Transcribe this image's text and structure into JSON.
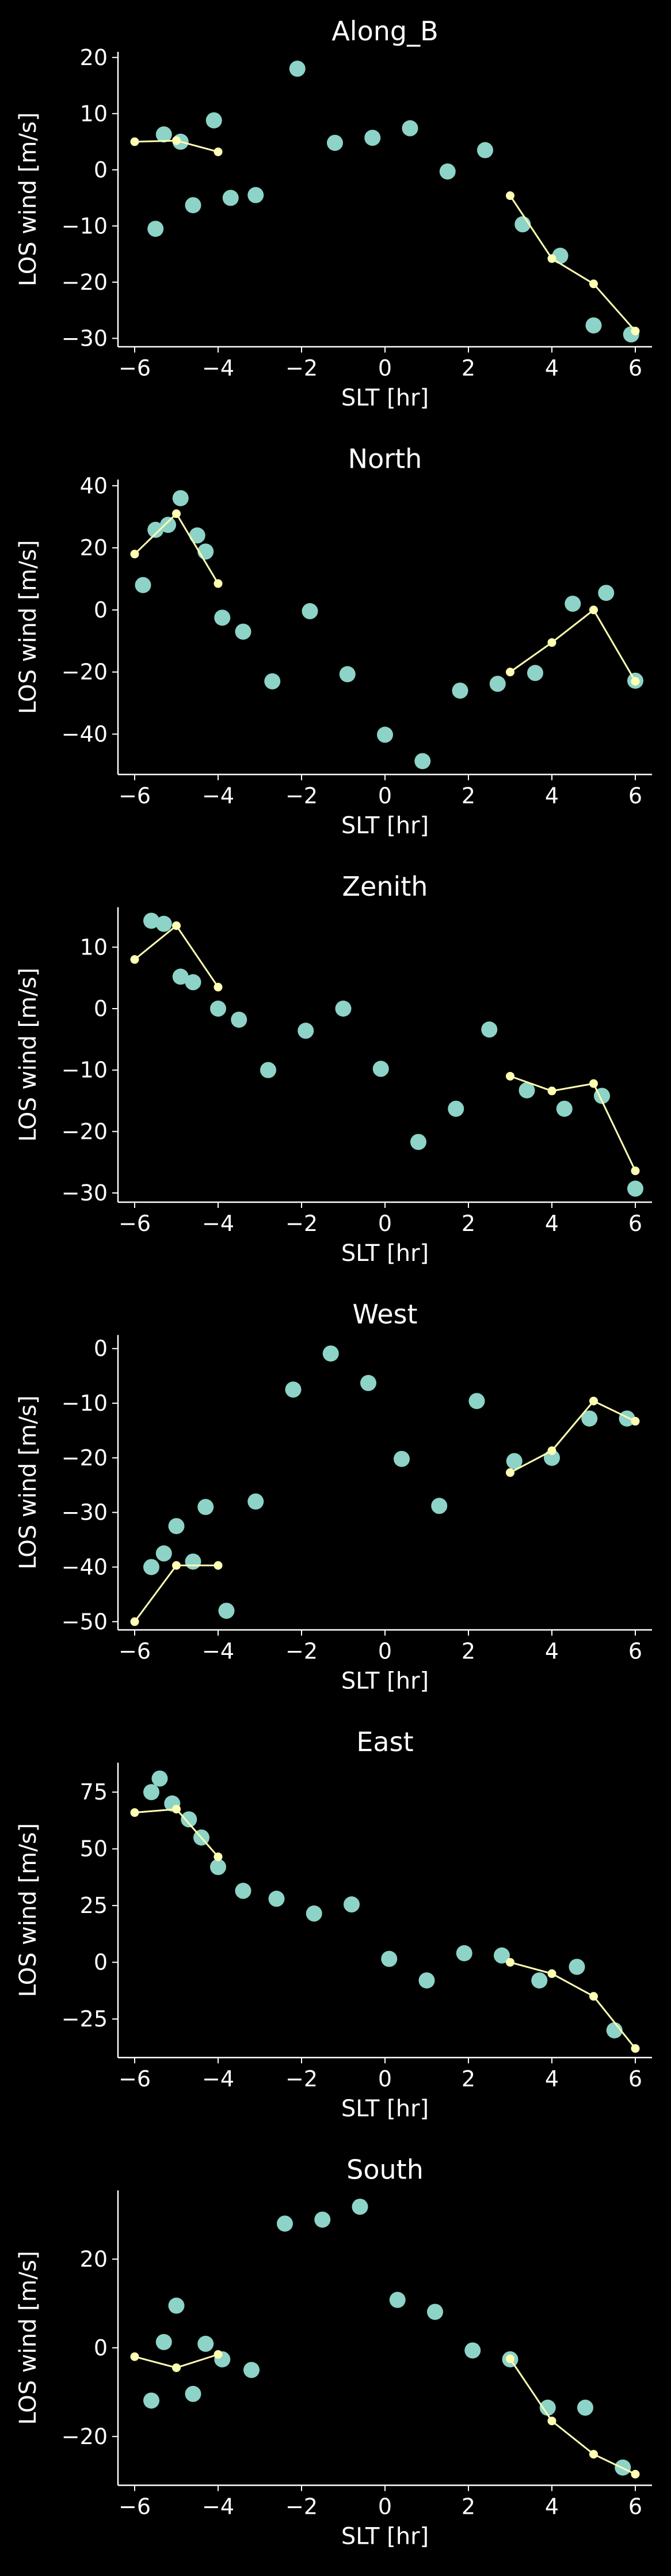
{
  "figure": {
    "background": "#000000",
    "foreground": "#ffffff"
  },
  "chart_data": [
    {
      "type": "scatter",
      "title": "Along_B",
      "xlabel": "SLT [hr]",
      "ylabel": "LOS wind [m/s]",
      "xlim": [
        -6.4,
        6.4
      ],
      "ylim": [
        -31.5,
        21
      ],
      "xticks": [
        -6,
        -4,
        -2,
        0,
        2,
        4,
        6
      ],
      "yticks": [
        -30,
        -20,
        -10,
        0,
        10,
        20
      ],
      "grid": false,
      "series": [
        {
          "style": "markers",
          "color": "#8dd3c7",
          "x": [
            -5.5,
            -5.3,
            -4.9,
            -4.6,
            -4.1,
            -3.7,
            -3.1,
            -2.1,
            -1.2,
            -0.3,
            0.6,
            1.5,
            2.4,
            3.3,
            4.2,
            5.0,
            5.9
          ],
          "y": [
            -10.5,
            6.3,
            5.0,
            -6.3,
            8.8,
            -5.0,
            -4.5,
            18.0,
            4.8,
            5.7,
            7.4,
            -0.3,
            3.5,
            -9.7,
            -15.3,
            -27.7,
            -29.3
          ]
        },
        {
          "style": "line",
          "color": "#ffffb3",
          "segments": [
            {
              "x": [
                -6,
                -5,
                -4
              ],
              "y": [
                5.0,
                5.2,
                3.2
              ]
            },
            {
              "x": [
                3,
                4,
                5,
                6
              ],
              "y": [
                -4.6,
                -15.8,
                -20.3,
                -28.7
              ]
            }
          ]
        }
      ]
    },
    {
      "type": "scatter",
      "title": "North",
      "xlabel": "SLT [hr]",
      "ylabel": "LOS wind [m/s]",
      "xlim": [
        -6.4,
        6.4
      ],
      "ylim": [
        -53,
        42
      ],
      "xticks": [
        -6,
        -4,
        -2,
        0,
        2,
        4,
        6
      ],
      "yticks": [
        -40,
        -20,
        0,
        20,
        40
      ],
      "grid": false,
      "series": [
        {
          "style": "markers",
          "color": "#8dd3c7",
          "x": [
            -5.8,
            -5.5,
            -5.2,
            -4.9,
            -4.5,
            -4.3,
            -3.9,
            -3.4,
            -2.7,
            -1.8,
            -0.9,
            0,
            0.9,
            1.8,
            2.7,
            3.6,
            4.5,
            5.3,
            6.0
          ],
          "y": [
            8.0,
            25.8,
            27.4,
            36.0,
            24.0,
            18.8,
            -2.5,
            -7.0,
            -23.0,
            -0.4,
            -20.7,
            -40.2,
            -48.7,
            -26.0,
            -23.8,
            -20.3,
            2.0,
            5.5,
            -22.8
          ]
        },
        {
          "style": "line",
          "color": "#ffffb3",
          "segments": [
            {
              "x": [
                -6,
                -5,
                -4
              ],
              "y": [
                18.0,
                31.0,
                8.5
              ]
            },
            {
              "x": [
                3,
                4,
                5,
                6
              ],
              "y": [
                -20.0,
                -10.5,
                0.0,
                -23.0
              ]
            }
          ]
        }
      ]
    },
    {
      "type": "scatter",
      "title": "Zenith",
      "xlabel": "SLT [hr]",
      "ylabel": "LOS wind [m/s]",
      "xlim": [
        -6.4,
        6.4
      ],
      "ylim": [
        -31.5,
        16.5
      ],
      "xticks": [
        -6,
        -4,
        -2,
        0,
        2,
        4,
        6
      ],
      "yticks": [
        -30,
        -20,
        -10,
        0,
        10
      ],
      "grid": false,
      "series": [
        {
          "style": "markers",
          "color": "#8dd3c7",
          "x": [
            -5.6,
            -5.3,
            -4.9,
            -4.6,
            -4.0,
            -3.5,
            -2.8,
            -1.9,
            -1.0,
            -0.1,
            0.8,
            1.7,
            2.5,
            3.4,
            4.3,
            5.2,
            6.0
          ],
          "y": [
            14.3,
            13.8,
            5.2,
            4.3,
            0.0,
            -1.8,
            -10.0,
            -3.6,
            0.0,
            -9.8,
            -21.7,
            -16.3,
            -3.4,
            -13.3,
            -16.3,
            -14.2,
            -29.3
          ]
        },
        {
          "style": "line",
          "color": "#ffffb3",
          "segments": [
            {
              "x": [
                -6,
                -5,
                -4
              ],
              "y": [
                8.0,
                13.5,
                3.5
              ]
            },
            {
              "x": [
                3,
                4,
                5,
                6
              ],
              "y": [
                -11.0,
                -13.4,
                -12.2,
                -26.4
              ]
            }
          ]
        }
      ]
    },
    {
      "type": "scatter",
      "title": "West",
      "xlabel": "SLT [hr]",
      "ylabel": "LOS wind [m/s]",
      "xlim": [
        -6.4,
        6.4
      ],
      "ylim": [
        -51.5,
        2.5
      ],
      "xticks": [
        -6,
        -4,
        -2,
        0,
        2,
        4,
        6
      ],
      "yticks": [
        -50,
        -40,
        -30,
        -20,
        -10,
        0
      ],
      "grid": false,
      "series": [
        {
          "style": "markers",
          "color": "#8dd3c7",
          "x": [
            -5.6,
            -5.3,
            -5.0,
            -4.6,
            -4.3,
            -3.8,
            -3.1,
            -2.2,
            -1.3,
            -0.4,
            0.4,
            1.3,
            2.2,
            3.1,
            4.0,
            4.9,
            5.8
          ],
          "y": [
            -40.0,
            -37.5,
            -32.5,
            -39.0,
            -29.0,
            -48.0,
            -28.0,
            -7.5,
            -0.9,
            -6.3,
            -20.2,
            -28.8,
            -9.6,
            -20.6,
            -20.0,
            -12.8,
            -12.8
          ]
        },
        {
          "style": "line",
          "color": "#ffffb3",
          "segments": [
            {
              "x": [
                -6,
                -5,
                -4
              ],
              "y": [
                -50.0,
                -39.7,
                -39.7
              ]
            },
            {
              "x": [
                3,
                4,
                5,
                6
              ],
              "y": [
                -22.7,
                -18.7,
                -9.6,
                -13.3
              ]
            }
          ]
        }
      ]
    },
    {
      "type": "scatter",
      "title": "East",
      "xlabel": "SLT [hr]",
      "ylabel": "LOS wind [m/s]",
      "xlim": [
        -6.4,
        6.4
      ],
      "ylim": [
        -42,
        88
      ],
      "xticks": [
        -6,
        -4,
        -2,
        0,
        2,
        4,
        6
      ],
      "yticks": [
        -25,
        0,
        25,
        50,
        75
      ],
      "grid": false,
      "series": [
        {
          "style": "markers",
          "color": "#8dd3c7",
          "x": [
            -5.6,
            -5.4,
            -5.1,
            -4.7,
            -4.4,
            -4.0,
            -3.4,
            -2.6,
            -1.7,
            -0.8,
            0.1,
            1.0,
            1.9,
            2.8,
            3.7,
            4.6,
            5.5
          ],
          "y": [
            75.0,
            81.0,
            70.0,
            63.0,
            55.0,
            42.0,
            31.5,
            28.0,
            21.5,
            25.5,
            1.5,
            -8.0,
            4.0,
            3.0,
            -8.0,
            -2.0,
            -30.0
          ]
        },
        {
          "style": "line",
          "color": "#ffffb3",
          "segments": [
            {
              "x": [
                -6,
                -5,
                -4
              ],
              "y": [
                66.0,
                67.5,
                46.5
              ]
            },
            {
              "x": [
                3,
                4,
                5,
                6
              ],
              "y": [
                0.0,
                -5.0,
                -15.0,
                -38.0
              ]
            }
          ]
        }
      ]
    },
    {
      "type": "scatter",
      "title": "South",
      "xlabel": "SLT [hr]",
      "ylabel": "LOS wind [m/s]",
      "xlim": [
        -6.4,
        6.4
      ],
      "ylim": [
        -31,
        35.5
      ],
      "xticks": [
        -6,
        -4,
        -2,
        0,
        2,
        4,
        6
      ],
      "yticks": [
        -20,
        0,
        20
      ],
      "grid": false,
      "series": [
        {
          "style": "markers",
          "color": "#8dd3c7",
          "x": [
            -5.6,
            -5.3,
            -5.0,
            -4.6,
            -4.3,
            -3.9,
            -3.2,
            -2.4,
            -1.5,
            -0.6,
            0.3,
            1.2,
            2.1,
            3.0,
            3.9,
            4.8,
            5.7
          ],
          "y": [
            -11.9,
            1.3,
            9.5,
            -10.4,
            0.9,
            -2.6,
            -5.0,
            28.0,
            28.9,
            31.8,
            10.8,
            8.1,
            -0.6,
            -2.6,
            -13.5,
            -13.5,
            -27.0
          ]
        },
        {
          "style": "line",
          "color": "#ffffb3",
          "segments": [
            {
              "x": [
                -6,
                -5,
                -4
              ],
              "y": [
                -2.0,
                -4.5,
                -1.5
              ]
            },
            {
              "x": [
                3,
                4,
                5,
                6
              ],
              "y": [
                -2.5,
                -16.5,
                -24.0,
                -28.5
              ]
            }
          ]
        }
      ]
    }
  ]
}
